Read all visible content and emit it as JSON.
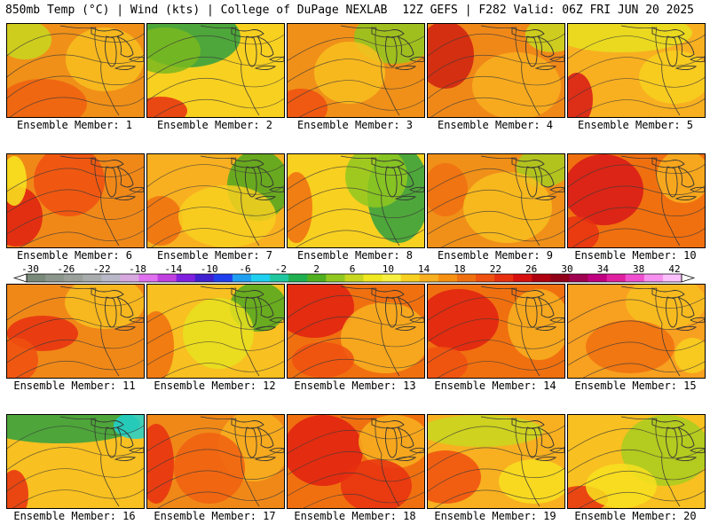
{
  "header": {
    "left": "850mb Temp (°C) | Wind (kts) | College of DuPage NEXLAB",
    "right": "12Z GEFS | F282 Valid: 06Z FRI JUN 20 2025"
  },
  "colorbar": {
    "tick_labels": [
      "-30",
      "-26",
      "-22",
      "-18",
      "-14",
      "-10",
      "-6",
      "-2",
      "2",
      "6",
      "10",
      "14",
      "18",
      "22",
      "26",
      "30",
      "34",
      "38",
      "42"
    ],
    "colors": [
      "#7a8a7a",
      "#8c968c",
      "#9aa09a",
      "#a8acac",
      "#b8b8c8",
      "#d8a8e0",
      "#e070f0",
      "#c040e0",
      "#8020e0",
      "#4020d0",
      "#2040f0",
      "#20a0f0",
      "#20d0f0",
      "#20c8a0",
      "#20b050",
      "#50b020",
      "#90c820",
      "#c8d820",
      "#f0e820",
      "#f8f040",
      "#f8d020",
      "#f8b020",
      "#f89010",
      "#f07010",
      "#f05010",
      "#e83010",
      "#d81010",
      "#b00010",
      "#900018",
      "#a00050",
      "#c00080",
      "#e020a0",
      "#f050d0",
      "#f890f0",
      "#fcc0fc"
    ]
  },
  "members": [
    {
      "label": "Ensemble Member: 1",
      "base": "#f09018",
      "blobs": [
        {
          "c": "#c8d820"
        },
        {
          "c": "#f8c020"
        },
        {
          "c": "#f06010"
        }
      ]
    },
    {
      "label": "Ensemble Member: 2",
      "base": "#f8d020",
      "blobs": [
        {
          "c": "#30a040"
        },
        {
          "c": "#7ab820"
        },
        {
          "c": "#e83010"
        }
      ]
    },
    {
      "label": "Ensemble Member: 3",
      "base": "#f09018",
      "blobs": [
        {
          "c": "#90c820"
        },
        {
          "c": "#f8c020"
        },
        {
          "c": "#f05010"
        }
      ]
    },
    {
      "label": "Ensemble Member: 4",
      "base": "#f08818",
      "blobs": [
        {
          "c": "#d02010"
        },
        {
          "c": "#c8d820"
        },
        {
          "c": "#f8b020"
        }
      ]
    },
    {
      "label": "Ensemble Member: 5",
      "base": "#f8b020",
      "blobs": [
        {
          "c": "#e8e020"
        },
        {
          "c": "#d81818"
        },
        {
          "c": "#f8d020"
        }
      ]
    },
    {
      "label": "Ensemble Member: 6",
      "base": "#f08818",
      "blobs": [
        {
          "c": "#e02010"
        },
        {
          "c": "#f8e820"
        },
        {
          "c": "#f05010"
        }
      ]
    },
    {
      "label": "Ensemble Member: 7",
      "base": "#f8b020",
      "blobs": [
        {
          "c": "#50a820"
        },
        {
          "c": "#f07010"
        },
        {
          "c": "#f8d020"
        }
      ]
    },
    {
      "label": "Ensemble Member: 8",
      "base": "#f8d020",
      "blobs": [
        {
          "c": "#30a040"
        },
        {
          "c": "#90c820"
        },
        {
          "c": "#f07010"
        }
      ]
    },
    {
      "label": "Ensemble Member: 9",
      "base": "#f09018",
      "blobs": [
        {
          "c": "#a8cc20"
        },
        {
          "c": "#f07010"
        },
        {
          "c": "#f8c020"
        }
      ]
    },
    {
      "label": "Ensemble Member: 10",
      "base": "#f07010",
      "blobs": [
        {
          "c": "#d81818"
        },
        {
          "c": "#f8b020"
        },
        {
          "c": "#e83010"
        }
      ]
    },
    {
      "label": "Ensemble Member: 11",
      "base": "#f08818",
      "blobs": [
        {
          "c": "#e83010"
        },
        {
          "c": "#f8c020"
        },
        {
          "c": "#f05010"
        }
      ]
    },
    {
      "label": "Ensemble Member: 12",
      "base": "#f8c020",
      "blobs": [
        {
          "c": "#50a820"
        },
        {
          "c": "#e8e020"
        },
        {
          "c": "#f07010"
        }
      ]
    },
    {
      "label": "Ensemble Member: 13",
      "base": "#f07010",
      "blobs": [
        {
          "c": "#e02010"
        },
        {
          "c": "#f8b020"
        },
        {
          "c": "#f05010"
        }
      ]
    },
    {
      "label": "Ensemble Member: 14",
      "base": "#f07010",
      "blobs": [
        {
          "c": "#e02010"
        },
        {
          "c": "#f8b020"
        },
        {
          "c": "#f05010"
        }
      ]
    },
    {
      "label": "Ensemble Member: 15",
      "base": "#f8a020",
      "blobs": [
        {
          "c": "#f8c020"
        },
        {
          "c": "#f07010"
        },
        {
          "c": "#f8d020"
        }
      ]
    },
    {
      "label": "Ensemble Member: 16",
      "base": "#f8c020",
      "blobs": [
        {
          "c": "#30a040"
        },
        {
          "c": "#20d0d0"
        },
        {
          "c": "#e83010"
        }
      ]
    },
    {
      "label": "Ensemble Member: 17",
      "base": "#f08818",
      "blobs": [
        {
          "c": "#e83010"
        },
        {
          "c": "#f8b020"
        },
        {
          "c": "#f06010"
        }
      ]
    },
    {
      "label": "Ensemble Member: 18",
      "base": "#f07010",
      "blobs": [
        {
          "c": "#e02010"
        },
        {
          "c": "#f8b020"
        },
        {
          "c": "#e83010"
        }
      ]
    },
    {
      "label": "Ensemble Member: 19",
      "base": "#f8b020",
      "blobs": [
        {
          "c": "#c8d820"
        },
        {
          "c": "#f05010"
        },
        {
          "c": "#f8e020"
        }
      ]
    },
    {
      "label": "Ensemble Member: 20",
      "base": "#f8c020",
      "blobs": [
        {
          "c": "#a8cc20"
        },
        {
          "c": "#e83010"
        },
        {
          "c": "#f8e020"
        }
      ]
    }
  ]
}
